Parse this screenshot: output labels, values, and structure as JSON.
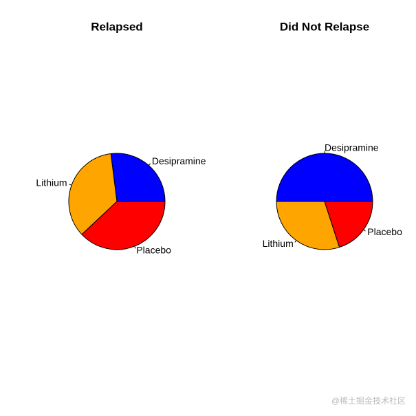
{
  "chart_data": [
    {
      "type": "pie",
      "title": "Relapsed",
      "categories": [
        "Desipramine",
        "Lithium",
        "Placebo"
      ],
      "values": [
        27,
        35,
        38
      ],
      "colors": [
        "#0000ff",
        "#ffa500",
        "#ff0000"
      ]
    },
    {
      "type": "pie",
      "title": "Did Not Relapse",
      "categories": [
        "Desipramine",
        "Lithium",
        "Placebo"
      ],
      "values": [
        50,
        30,
        20
      ],
      "colors": [
        "#0000ff",
        "#ffa500",
        "#ff0000"
      ]
    }
  ],
  "watermark": "@稀土掘金技术社区"
}
